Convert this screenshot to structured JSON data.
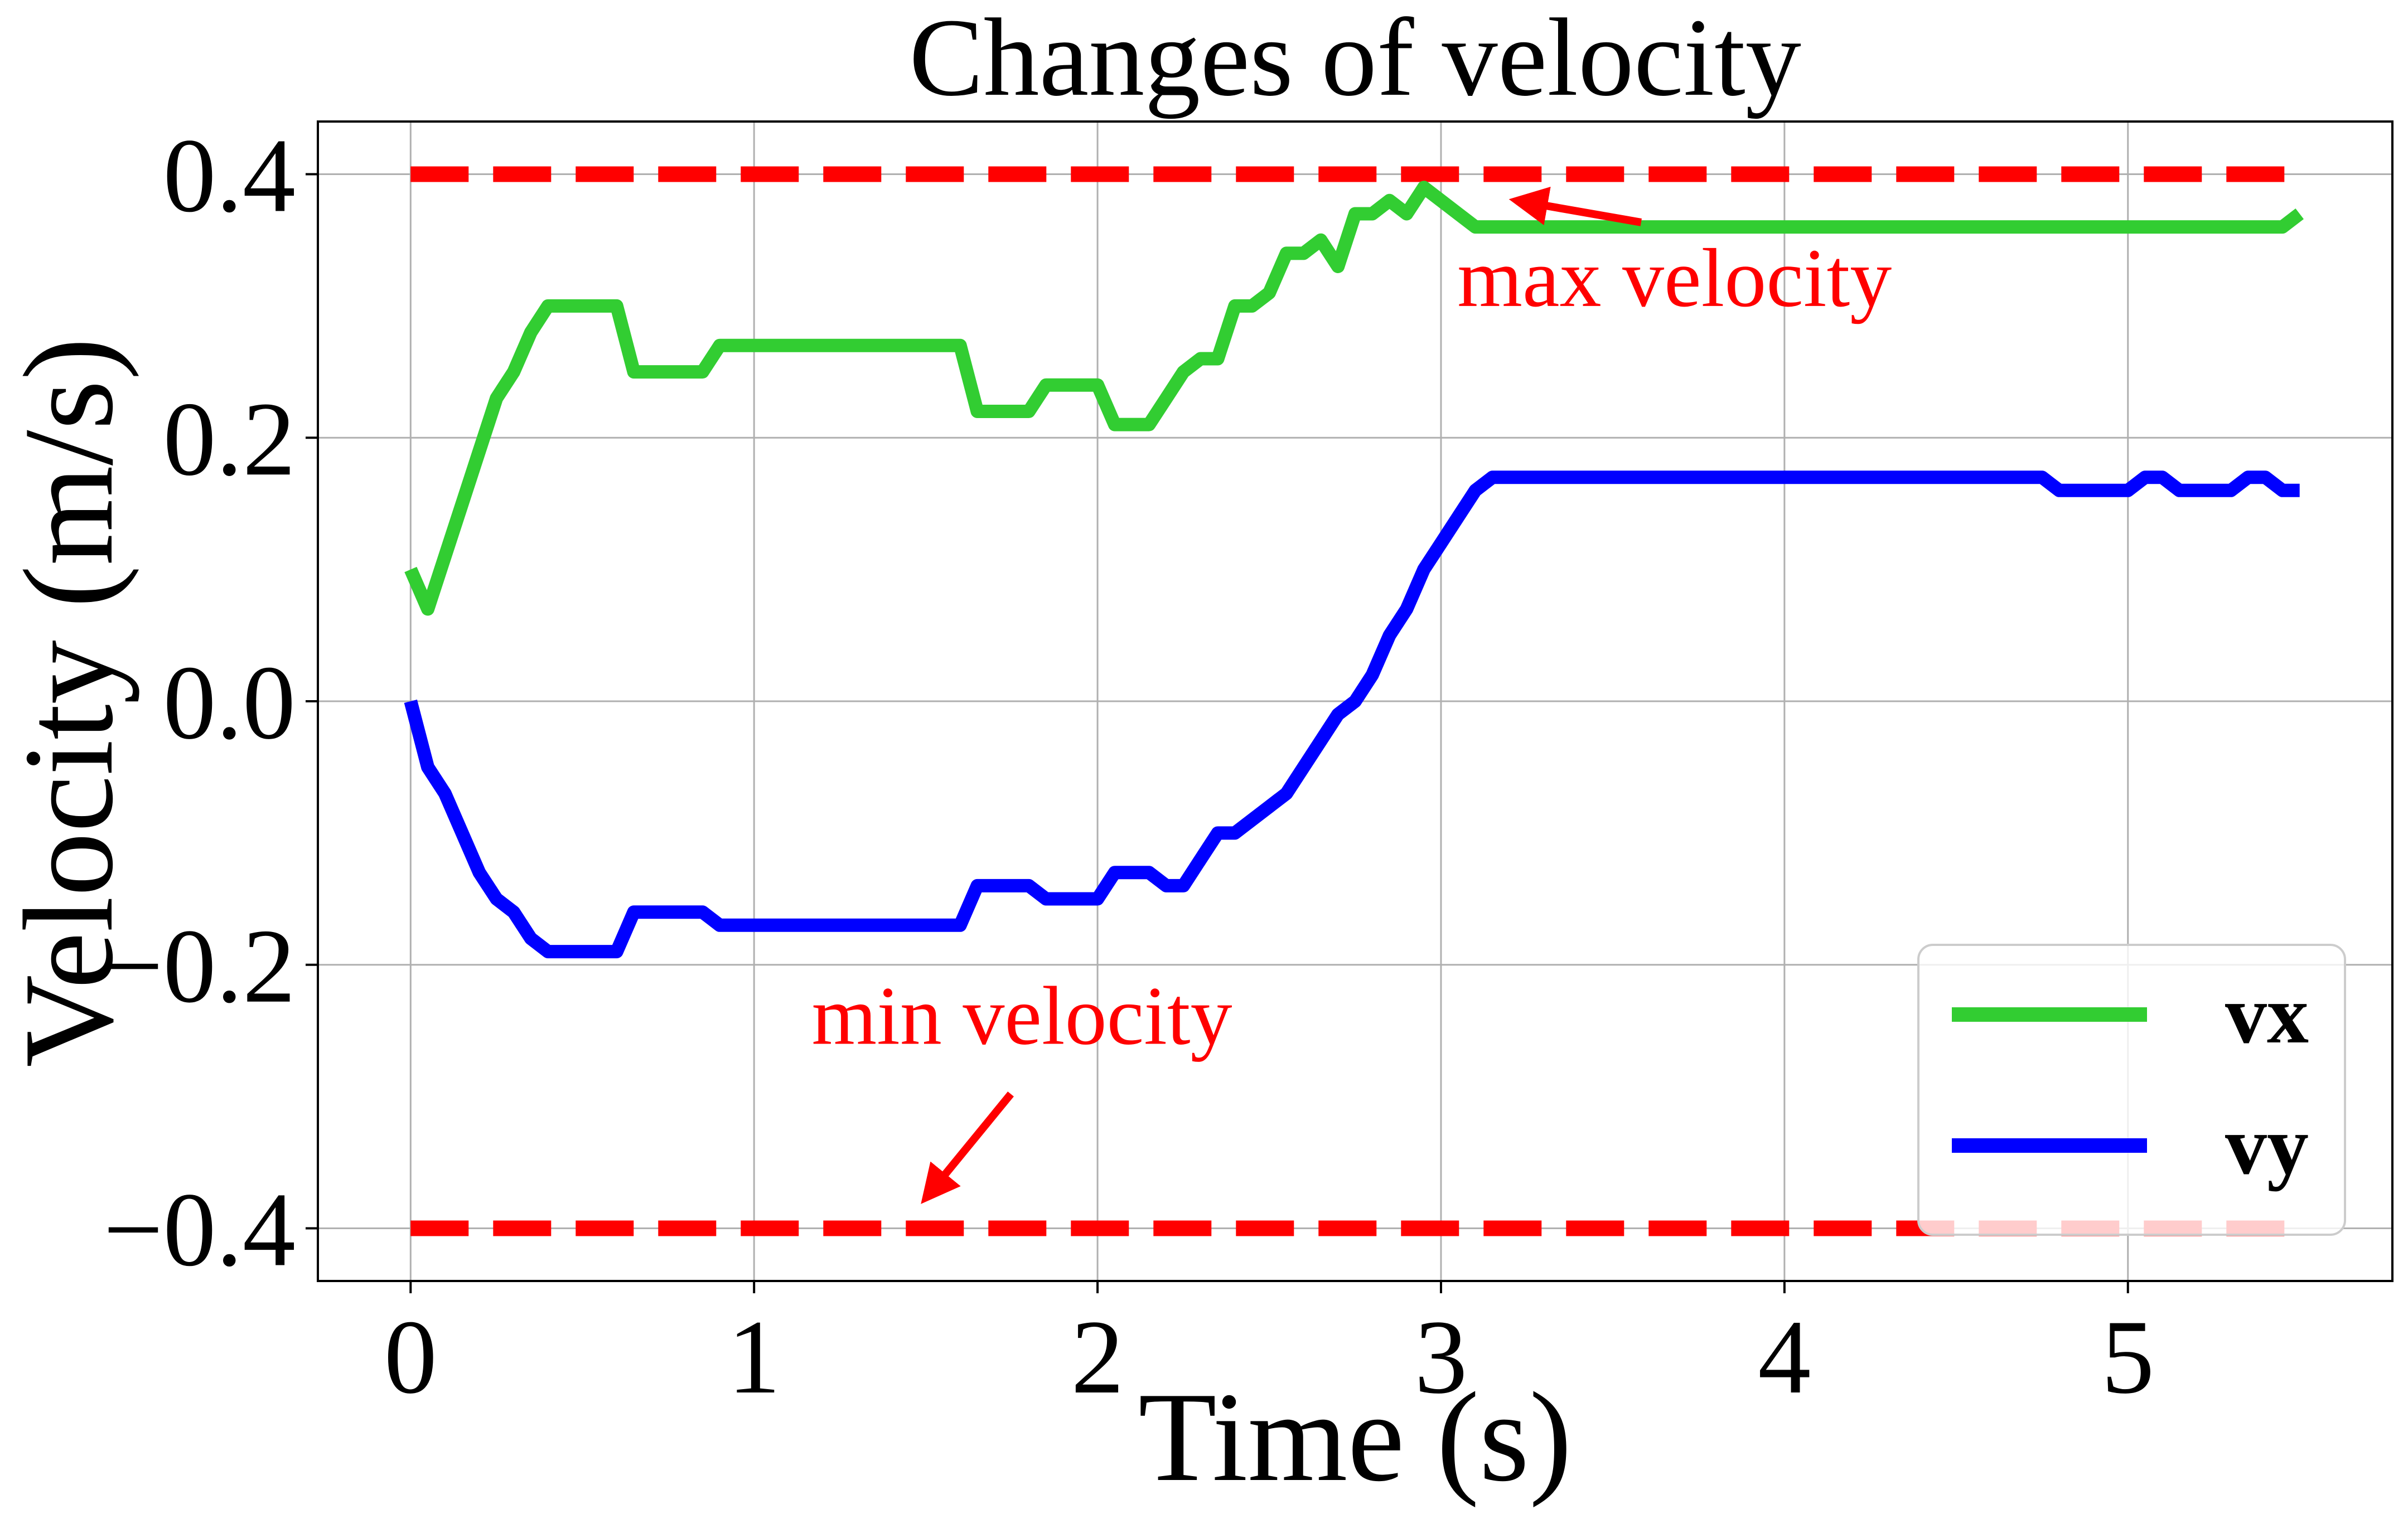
{
  "chart_data": {
    "type": "line",
    "title": "Changes of velocity",
    "xlabel": "Time (s)",
    "ylabel": "Velocity (m/s)",
    "xlim": [
      -0.27,
      5.77
    ],
    "ylim": [
      -0.44,
      0.44
    ],
    "xticks": [
      0,
      1,
      2,
      3,
      4,
      5
    ],
    "xtick_labels": [
      "0",
      "1",
      "2",
      "3",
      "4",
      "5"
    ],
    "yticks": [
      0.4,
      0.2,
      0.0,
      -0.2,
      -0.4
    ],
    "ytick_labels": [
      "0.4",
      "0.2",
      "0.0",
      "−0.2",
      "−0.4"
    ],
    "grid": true,
    "legend_position": "lower-right",
    "series": [
      {
        "name": "vx",
        "color": "#32cd32",
        "style": "solid",
        "x": [
          0,
          0.05,
          0.1,
          0.15,
          0.2,
          0.25,
          0.3,
          0.35,
          0.4,
          0.45,
          0.5,
          0.55,
          0.6,
          0.65,
          0.7,
          0.75,
          0.8,
          0.85,
          0.9,
          0.95,
          1.0,
          1.1,
          1.2,
          1.3,
          1.4,
          1.5,
          1.6,
          1.65,
          1.7,
          1.75,
          1.8,
          1.85,
          1.9,
          1.95,
          2.0,
          2.05,
          2.1,
          2.15,
          2.2,
          2.25,
          2.3,
          2.35,
          2.4,
          2.45,
          2.5,
          2.55,
          2.6,
          2.65,
          2.7,
          2.75,
          2.8,
          2.85,
          2.9,
          2.95,
          3.0,
          3.05,
          3.1,
          3.5,
          4.0,
          4.5,
          5.0,
          5.45,
          5.5
        ],
        "y": [
          0.1,
          0.07,
          0.11,
          0.15,
          0.19,
          0.23,
          0.25,
          0.28,
          0.3,
          0.3,
          0.3,
          0.3,
          0.3,
          0.25,
          0.25,
          0.25,
          0.25,
          0.25,
          0.27,
          0.27,
          0.27,
          0.27,
          0.27,
          0.27,
          0.27,
          0.27,
          0.27,
          0.22,
          0.22,
          0.22,
          0.22,
          0.24,
          0.24,
          0.24,
          0.24,
          0.21,
          0.21,
          0.21,
          0.23,
          0.25,
          0.26,
          0.26,
          0.3,
          0.3,
          0.31,
          0.34,
          0.34,
          0.35,
          0.33,
          0.37,
          0.37,
          0.38,
          0.37,
          0.39,
          0.38,
          0.37,
          0.36,
          0.36,
          0.36,
          0.36,
          0.36,
          0.36,
          0.37
        ]
      },
      {
        "name": "vy",
        "color": "#0000ff",
        "style": "solid",
        "x": [
          0,
          0.05,
          0.1,
          0.15,
          0.2,
          0.25,
          0.3,
          0.35,
          0.4,
          0.5,
          0.6,
          0.65,
          0.7,
          0.8,
          0.85,
          0.9,
          1.0,
          1.2,
          1.4,
          1.6,
          1.65,
          1.7,
          1.8,
          1.85,
          1.9,
          2.0,
          2.05,
          2.1,
          2.15,
          2.2,
          2.25,
          2.3,
          2.35,
          2.4,
          2.45,
          2.5,
          2.55,
          2.6,
          2.65,
          2.7,
          2.75,
          2.8,
          2.85,
          2.9,
          2.95,
          3.0,
          3.05,
          3.1,
          3.15,
          3.5,
          4.0,
          4.5,
          4.75,
          4.8,
          4.9,
          5.0,
          5.05,
          5.1,
          5.15,
          5.2,
          5.3,
          5.35,
          5.4,
          5.45,
          5.5
        ],
        "y": [
          0.0,
          -0.05,
          -0.07,
          -0.1,
          -0.13,
          -0.15,
          -0.16,
          -0.18,
          -0.19,
          -0.19,
          -0.19,
          -0.16,
          -0.16,
          -0.16,
          -0.16,
          -0.17,
          -0.17,
          -0.17,
          -0.17,
          -0.17,
          -0.14,
          -0.14,
          -0.14,
          -0.15,
          -0.15,
          -0.15,
          -0.13,
          -0.13,
          -0.13,
          -0.14,
          -0.14,
          -0.12,
          -0.1,
          -0.1,
          -0.09,
          -0.08,
          -0.07,
          -0.05,
          -0.03,
          -0.01,
          0.0,
          0.02,
          0.05,
          0.07,
          0.1,
          0.12,
          0.14,
          0.16,
          0.17,
          0.17,
          0.17,
          0.17,
          0.17,
          0.16,
          0.16,
          0.16,
          0.17,
          0.17,
          0.16,
          0.16,
          0.16,
          0.17,
          0.17,
          0.16,
          0.16
        ]
      },
      {
        "name": "max velocity",
        "color": "#ff0000",
        "style": "dashed",
        "in_legend": false,
        "x": [
          0,
          5.5
        ],
        "y": [
          0.4,
          0.4
        ]
      },
      {
        "name": "min velocity",
        "color": "#ff0000",
        "style": "dashed",
        "in_legend": false,
        "x": [
          0,
          5.5
        ],
        "y": [
          -0.4,
          -0.4
        ]
      }
    ],
    "annotations": [
      {
        "text": "max velocity",
        "color": "#ff0000",
        "x": 3.68,
        "y": 0.3,
        "arrow_to": [
          3.22,
          0.38
        ]
      },
      {
        "text": "min velocity",
        "color": "#ff0000",
        "x": 1.78,
        "y": -0.26,
        "arrow_to": [
          1.5,
          -0.377
        ]
      }
    ]
  }
}
